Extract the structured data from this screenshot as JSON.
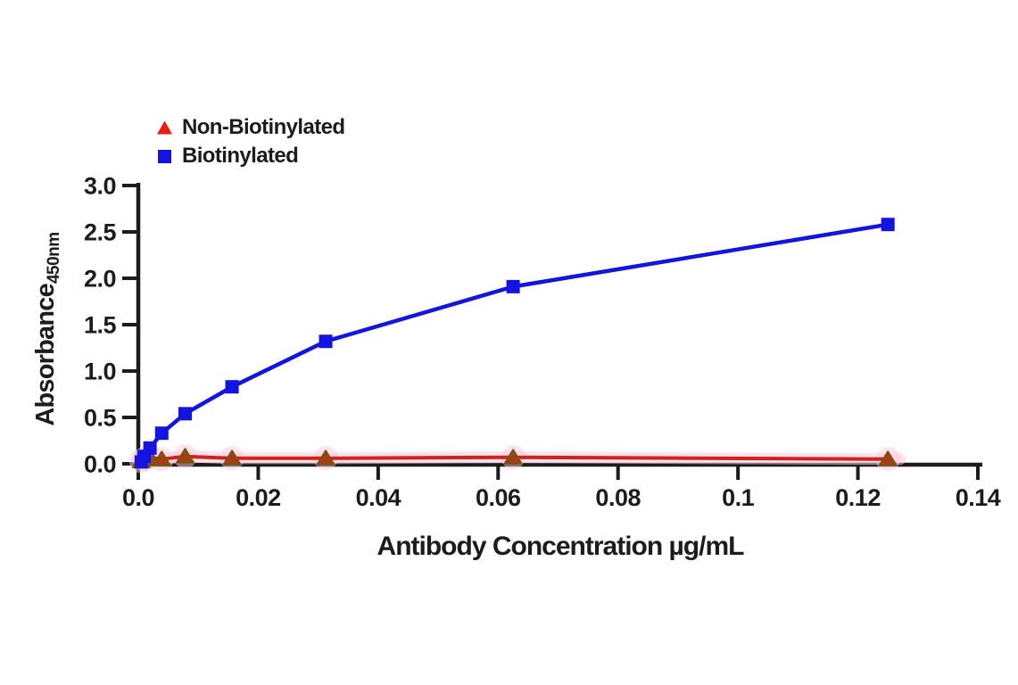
{
  "chart_data": {
    "type": "line",
    "title": "",
    "xlabel": "Antibody Concentration µg/mL",
    "ylabel": "Absorbance",
    "ylabel_subscript": "450nm",
    "xlim": [
      0,
      0.14
    ],
    "ylim": [
      0,
      3.0
    ],
    "x_ticks": [
      0,
      0.02,
      0.04,
      0.06,
      0.08,
      0.1,
      0.12,
      0.14
    ],
    "x_tick_labels": [
      "0.0",
      "0.02",
      "0.04",
      "0.06",
      "0.08",
      "0.1",
      "0.12",
      "0.14"
    ],
    "y_ticks": [
      0,
      0.5,
      1.0,
      1.5,
      2.0,
      2.5,
      3.0
    ],
    "y_tick_labels": [
      "0.0",
      "0.5",
      "1.0",
      "1.5",
      "2.0",
      "2.5",
      "3.0"
    ],
    "grid": false,
    "legend_position": "upper-left, above plot area",
    "axis_color": "#1c1c1c",
    "series": [
      {
        "name": "Non-Biotinylated",
        "marker": "triangle",
        "legend_color": "#ee1b10",
        "line_color": "#cf2318",
        "marker_fill": "#a83d14",
        "marker_edge": "#6e5713",
        "glow_color": "#ffc9e0",
        "x": [
          0.00049,
          0.00098,
          0.00195,
          0.00391,
          0.00781,
          0.01563,
          0.03125,
          0.0625,
          0.125
        ],
        "y": [
          0.03,
          0.05,
          0.07,
          0.05,
          0.08,
          0.06,
          0.06,
          0.07,
          0.05
        ]
      },
      {
        "name": "Biotinylated",
        "marker": "square",
        "legend_color": "#1414e0",
        "line_color": "#1414e0",
        "marker_fill": "#1414e0",
        "x": [
          0.00049,
          0.00098,
          0.00195,
          0.00391,
          0.00781,
          0.01563,
          0.03125,
          0.0625,
          0.125
        ],
        "y": [
          0.02,
          0.08,
          0.17,
          0.33,
          0.54,
          0.83,
          1.32,
          1.91,
          2.58
        ]
      }
    ]
  }
}
